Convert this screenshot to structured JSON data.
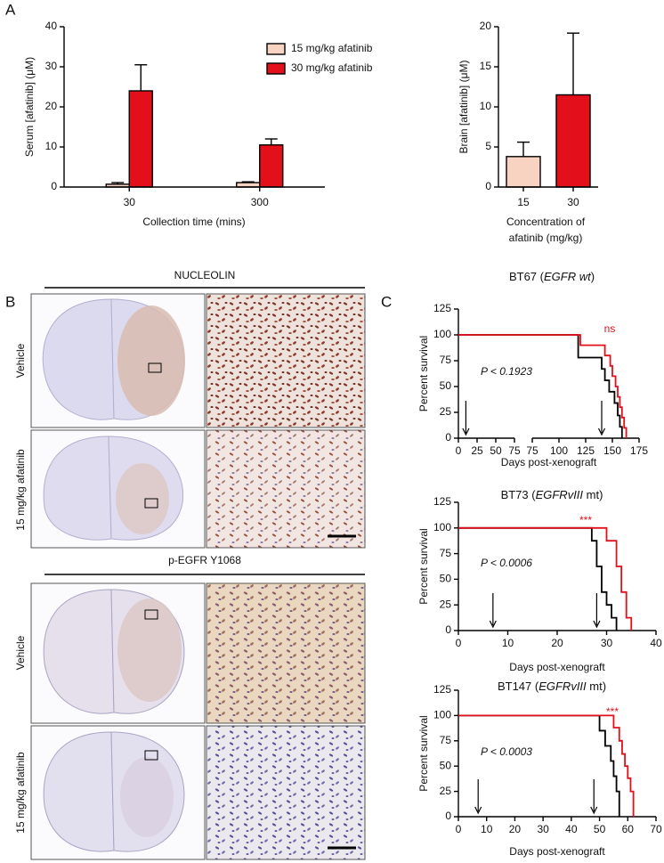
{
  "panels": {
    "a": "A",
    "b": "B",
    "c": "C"
  },
  "histology": {
    "blocks": [
      {
        "title": "NUCLEOLIN",
        "rows": [
          "Vehicle",
          "15 mg/kg afatinib"
        ]
      },
      {
        "title": "p-EGFR Y1068",
        "rows": [
          "Vehicle",
          "15 mg/kg afatinib"
        ]
      }
    ]
  },
  "chart_data": [
    {
      "type": "bar",
      "ylabel": "Serum [afatinib] (μM)",
      "xlabel": "Collection time (mins)",
      "categories": [
        "30",
        "300"
      ],
      "series": [
        {
          "name": "15 mg/kg afatinib",
          "color": "#f8d3c2",
          "values": [
            0.7,
            1.1
          ],
          "errors": [
            0.4,
            0.2
          ]
        },
        {
          "name": "30 mg/kg afatinib",
          "color": "#e3101c",
          "values": [
            24,
            10.5
          ],
          "errors": [
            6.5,
            1.5
          ]
        }
      ],
      "ylim": [
        0,
        40
      ],
      "yticks": [
        0,
        10,
        20,
        30,
        40
      ]
    },
    {
      "type": "bar",
      "ylabel": "Brain [afatinib] (μM)",
      "xlabel": [
        "Concentration of",
        "afatinib (mg/kg)"
      ],
      "categories": [
        "15",
        "30"
      ],
      "colors": [
        "#f8d3c2",
        "#e3101c"
      ],
      "values": [
        3.8,
        11.5
      ],
      "errors": [
        1.8,
        7.7
      ],
      "ylim": [
        0,
        20
      ],
      "yticks": [
        0,
        5,
        10,
        15,
        20
      ]
    },
    {
      "type": "step",
      "title": [
        "BT67 (",
        "EGFR wt",
        ")"
      ],
      "ylabel": "Percent survival",
      "xlabel": "Days post-xenograft",
      "xlim": [
        [
          0,
          75
        ],
        [
          75,
          175
        ]
      ],
      "xticks": [
        [
          0,
          25,
          50,
          75
        ],
        [
          75,
          100,
          125,
          150,
          175
        ]
      ],
      "ylim": [
        0,
        125
      ],
      "yticks": [
        0,
        25,
        50,
        75,
        100,
        125
      ],
      "annotation": "P < 0.1923",
      "significance": "ns",
      "significance_color": "#e3101c",
      "arrows": [
        10,
        140
      ],
      "series": [
        {
          "color": "#000000",
          "x": [
            0,
            118,
            140,
            143,
            147,
            152,
            155,
            157,
            159
          ],
          "values": [
            100,
            78,
            67,
            56,
            45,
            34,
            22,
            11,
            0
          ]
        },
        {
          "color": "#e3101c",
          "x": [
            0,
            120,
            143,
            148,
            150,
            153,
            155,
            157,
            159,
            161,
            163
          ],
          "values": [
            100,
            90,
            80,
            70,
            60,
            50,
            40,
            30,
            20,
            10,
            0
          ]
        }
      ]
    },
    {
      "type": "step",
      "title": [
        "BT73 (",
        "EGFRvIII",
        " mt)"
      ],
      "ylabel": "Percent survival",
      "xlabel": "Days post-xenograft",
      "xlim": [
        0,
        40
      ],
      "xticks": [
        0,
        10,
        20,
        30,
        40
      ],
      "ylim": [
        0,
        125
      ],
      "yticks": [
        0,
        25,
        50,
        75,
        100,
        125
      ],
      "annotation": "P < 0.0006",
      "significance": "***",
      "significance_color": "#e3101c",
      "arrows": [
        7,
        28
      ],
      "series": [
        {
          "color": "#000000",
          "x": [
            0,
            27,
            28,
            29,
            30,
            31,
            32
          ],
          "values": [
            100,
            87.5,
            62.5,
            37.5,
            25,
            12.5,
            0
          ]
        },
        {
          "color": "#e3101c",
          "x": [
            0,
            30,
            32,
            33,
            34,
            35
          ],
          "values": [
            100,
            87.5,
            62.5,
            37.5,
            12.5,
            0
          ]
        }
      ]
    },
    {
      "type": "step",
      "title": [
        "BT147 (",
        "EGFRvIII",
        " mt)"
      ],
      "ylabel": "Percent survival",
      "xlabel": "Days post-xenograft",
      "xlim": [
        0,
        70
      ],
      "xticks": [
        0,
        10,
        20,
        30,
        40,
        50,
        60,
        70
      ],
      "ylim": [
        0,
        125
      ],
      "yticks": [
        0,
        25,
        50,
        75,
        100,
        125
      ],
      "annotation": "P < 0.0003",
      "significance": "***",
      "significance_color": "#e3101c",
      "arrows": [
        7,
        48
      ],
      "series": [
        {
          "color": "#000000",
          "x": [
            0,
            50,
            52,
            54,
            55,
            56,
            57
          ],
          "values": [
            100,
            85,
            70,
            55,
            40,
            25,
            0
          ]
        },
        {
          "color": "#e3101c",
          "x": [
            0,
            55,
            57,
            58,
            59,
            60,
            61,
            62
          ],
          "values": [
            100,
            88,
            75,
            62,
            50,
            38,
            25,
            0
          ]
        }
      ]
    }
  ]
}
